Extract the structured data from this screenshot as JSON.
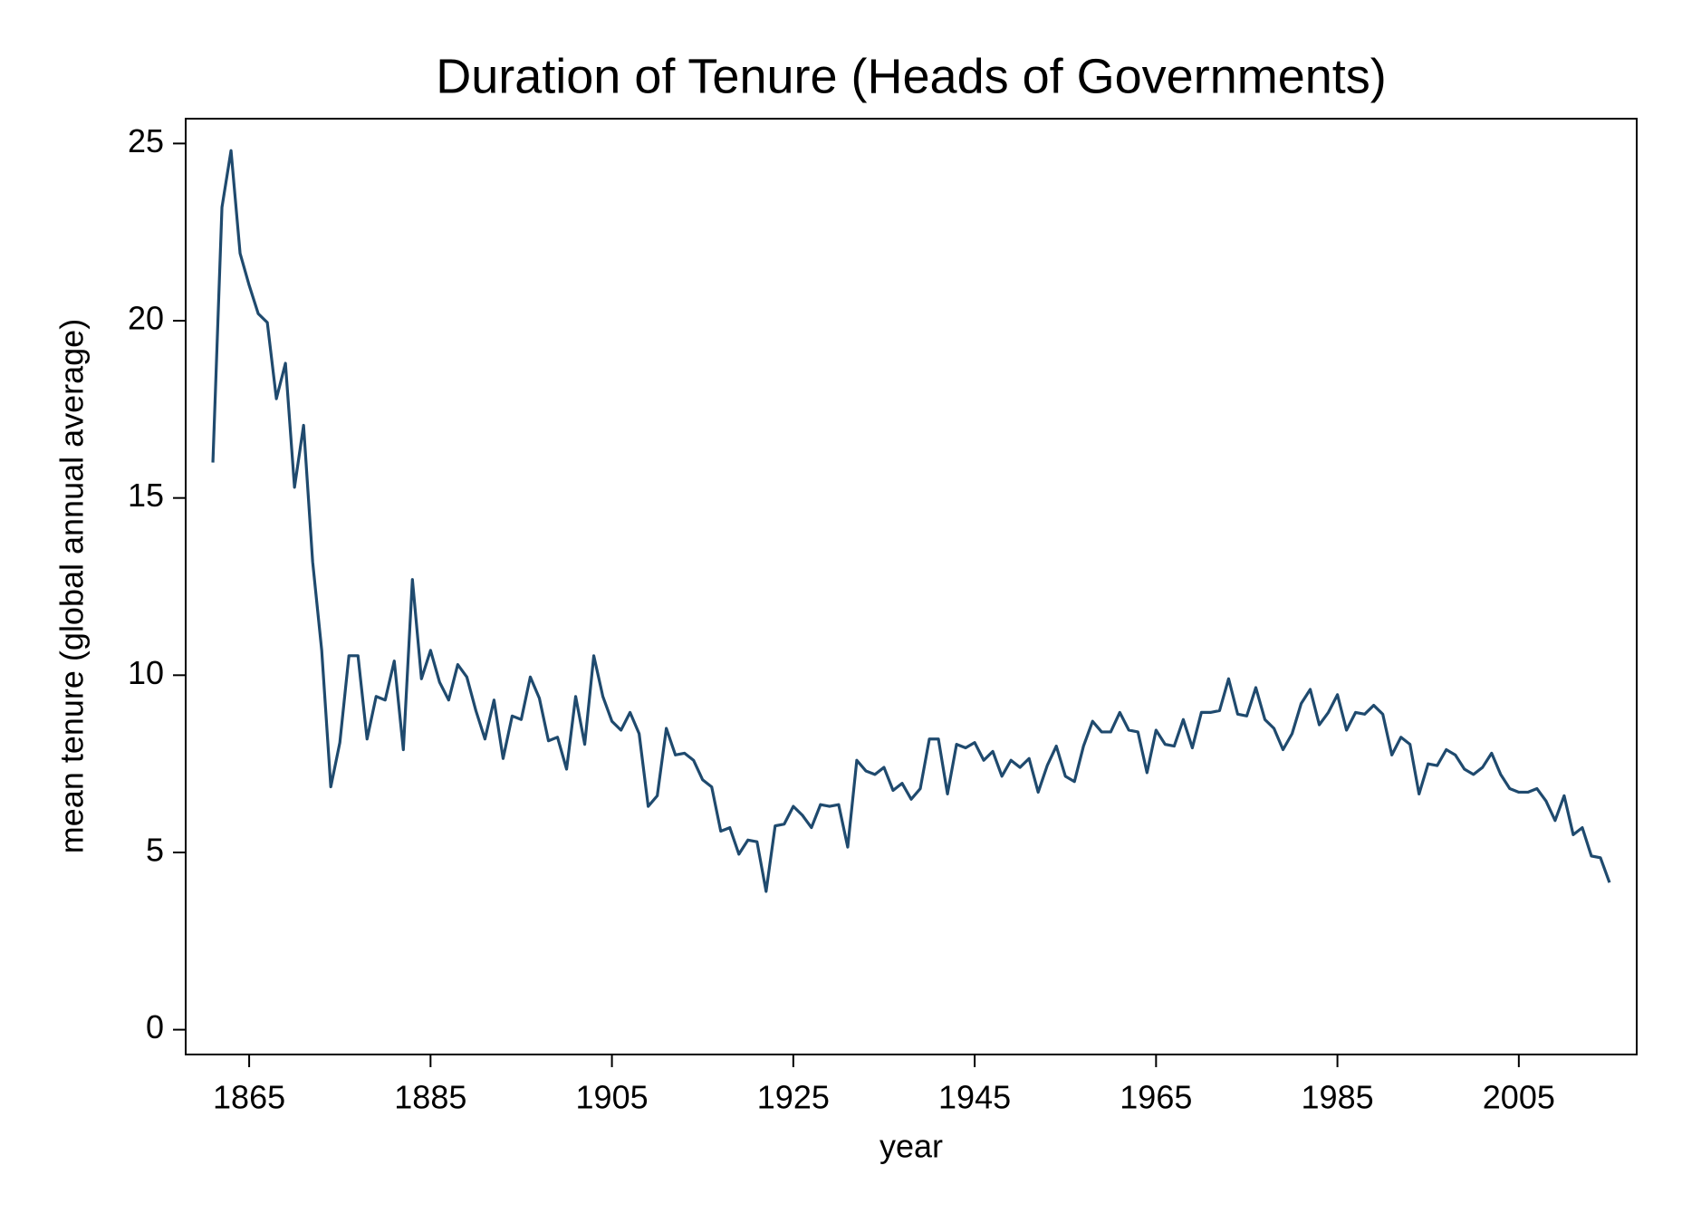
{
  "chart_data": {
    "type": "line",
    "title": "Duration of Tenure (Heads of Governments)",
    "xlabel": "year",
    "ylabel": "mean tenure (global annual average)",
    "x": [
      1861,
      1862,
      1863,
      1864,
      1865,
      1866,
      1867,
      1868,
      1869,
      1870,
      1871,
      1872,
      1873,
      1874,
      1875,
      1876,
      1877,
      1878,
      1879,
      1880,
      1881,
      1882,
      1883,
      1884,
      1885,
      1886,
      1887,
      1888,
      1889,
      1890,
      1891,
      1892,
      1893,
      1894,
      1895,
      1896,
      1897,
      1898,
      1899,
      1900,
      1901,
      1902,
      1903,
      1904,
      1905,
      1906,
      1907,
      1908,
      1909,
      1910,
      1911,
      1912,
      1913,
      1914,
      1915,
      1916,
      1917,
      1918,
      1919,
      1920,
      1921,
      1922,
      1923,
      1924,
      1925,
      1926,
      1927,
      1928,
      1929,
      1930,
      1931,
      1932,
      1933,
      1934,
      1935,
      1936,
      1937,
      1938,
      1939,
      1940,
      1941,
      1942,
      1943,
      1944,
      1945,
      1946,
      1947,
      1948,
      1949,
      1950,
      1951,
      1952,
      1953,
      1954,
      1955,
      1956,
      1957,
      1958,
      1959,
      1960,
      1961,
      1962,
      1963,
      1964,
      1965,
      1966,
      1967,
      1968,
      1969,
      1970,
      1971,
      1972,
      1973,
      1974,
      1975,
      1976,
      1977,
      1978,
      1979,
      1980,
      1981,
      1982,
      1983,
      1984,
      1985,
      1986,
      1987,
      1988,
      1989,
      1990,
      1991,
      1992,
      1993,
      1994,
      1995,
      1996,
      1997,
      1998,
      1999,
      2000,
      2001,
      2002,
      2003,
      2004,
      2005,
      2006,
      2007,
      2008,
      2009,
      2010,
      2011,
      2012,
      2013,
      2014,
      2015
    ],
    "values": [
      16.0,
      23.2,
      24.8,
      21.9,
      21.0,
      20.2,
      19.95,
      17.8,
      18.8,
      15.3,
      17.05,
      13.2,
      10.7,
      6.85,
      8.1,
      10.55,
      10.55,
      8.2,
      9.4,
      9.3,
      10.4,
      7.9,
      12.7,
      9.9,
      10.7,
      9.8,
      9.3,
      10.3,
      9.95,
      9.0,
      8.2,
      9.3,
      7.65,
      8.85,
      8.75,
      9.95,
      9.35,
      8.15,
      8.25,
      7.35,
      9.4,
      8.05,
      10.55,
      9.4,
      8.7,
      8.45,
      8.95,
      8.35,
      6.3,
      6.6,
      8.5,
      7.75,
      7.8,
      7.6,
      7.05,
      6.85,
      5.6,
      5.7,
      4.95,
      5.35,
      5.3,
      3.9,
      5.75,
      5.8,
      6.3,
      6.05,
      5.7,
      6.35,
      6.3,
      6.35,
      5.15,
      7.6,
      7.3,
      7.2,
      7.4,
      6.75,
      6.95,
      6.5,
      6.8,
      8.2,
      8.2,
      6.65,
      8.05,
      7.95,
      8.1,
      7.6,
      7.85,
      7.15,
      7.6,
      7.4,
      7.65,
      6.7,
      7.45,
      8.0,
      7.15,
      7.0,
      8.0,
      8.7,
      8.4,
      8.4,
      8.95,
      8.45,
      8.4,
      7.25,
      8.45,
      8.05,
      8.0,
      8.75,
      7.95,
      8.95,
      8.95,
      9.0,
      9.9,
      8.9,
      8.85,
      9.65,
      8.75,
      8.5,
      7.9,
      8.35,
      9.2,
      9.6,
      8.6,
      8.95,
      9.45,
      8.45,
      8.95,
      8.9,
      9.15,
      8.9,
      7.75,
      8.25,
      8.05,
      6.65,
      7.5,
      7.45,
      7.9,
      7.75,
      7.35,
      7.2,
      7.4,
      7.8,
      7.2,
      6.8,
      6.7,
      6.7,
      6.8,
      6.45,
      5.9,
      6.6,
      5.5,
      5.7,
      4.9,
      4.85,
      4.15
    ],
    "color": "#1f4a6e",
    "xlim": [
      1858,
      2018
    ],
    "xticks": [
      1865,
      1885,
      1905,
      1925,
      1945,
      1965,
      1985,
      2005
    ],
    "ylim": [
      -0.7,
      25.7
    ],
    "yticks": [
      0,
      5,
      10,
      15,
      20,
      25
    ],
    "grid": false
  }
}
